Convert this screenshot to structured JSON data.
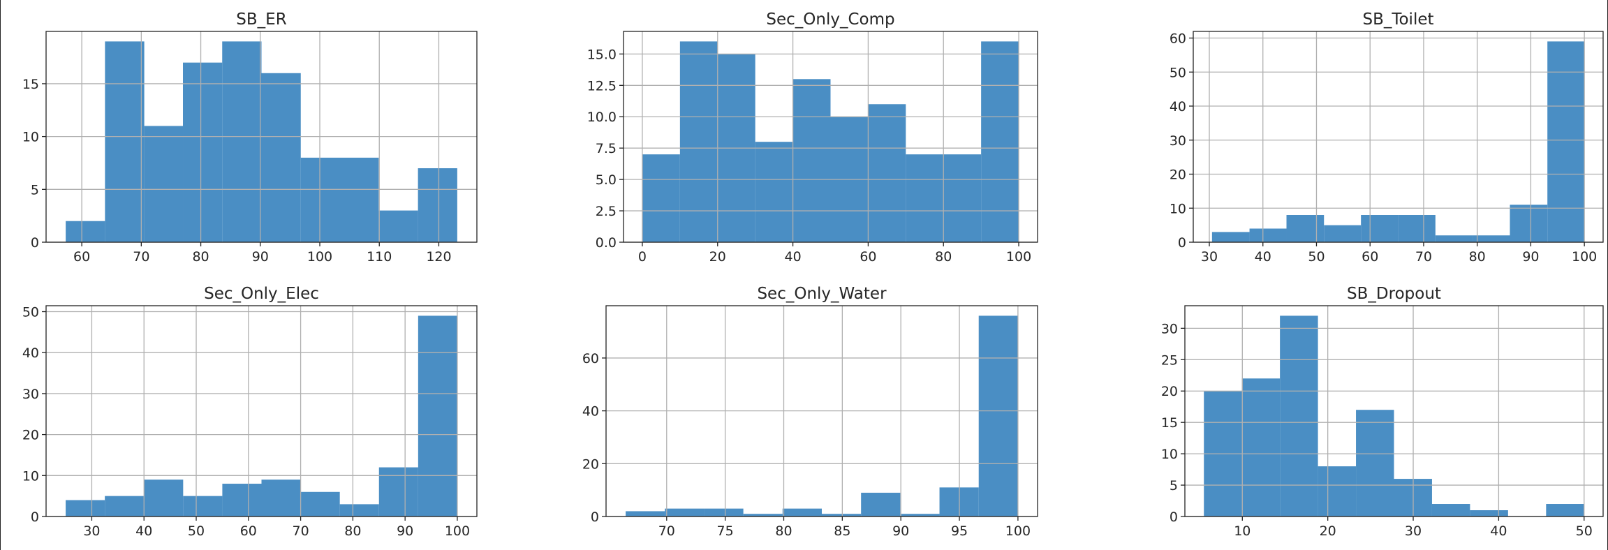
{
  "figure": {
    "bar_color": "#4a8ec4",
    "grid_color": "#b0b0b0"
  },
  "chart_data": [
    {
      "type": "bar",
      "title": "SB_ER",
      "bin_edges": [
        57.3,
        63.9,
        70.5,
        77.0,
        83.6,
        90.2,
        96.8,
        103.4,
        109.9,
        116.5,
        123.1
      ],
      "values": [
        2,
        19,
        11,
        17,
        19,
        16,
        8,
        8,
        3,
        7
      ],
      "xlim": [
        54.0,
        126.4
      ],
      "ylim": [
        0,
        19.95
      ],
      "xticks": [
        60,
        70,
        80,
        90,
        100,
        110,
        120
      ],
      "yticks": [
        0,
        5,
        10,
        15
      ],
      "ytick_labels": [
        "0",
        "5",
        "10",
        "15"
      ],
      "grid": true
    },
    {
      "type": "bar",
      "title": "Sec_Only_Comp",
      "bin_edges": [
        0,
        10,
        20,
        30,
        40,
        50,
        60,
        70,
        80,
        90,
        100
      ],
      "values": [
        7,
        16,
        15,
        8,
        13,
        10,
        11,
        7,
        7,
        16
      ],
      "xlim": [
        -5,
        105
      ],
      "ylim": [
        0,
        16.8
      ],
      "xticks": [
        0,
        20,
        40,
        60,
        80,
        100
      ],
      "yticks": [
        0,
        2.5,
        5,
        7.5,
        10,
        12.5,
        15
      ],
      "ytick_labels": [
        "0.0",
        "2.5",
        "5.0",
        "7.5",
        "10.0",
        "12.5",
        "15.0"
      ],
      "grid": true
    },
    {
      "type": "bar",
      "title": "SB_Toilet",
      "bin_edges": [
        30.5,
        37.5,
        44.4,
        51.4,
        58.3,
        65.3,
        72.2,
        79.2,
        86.1,
        93.1,
        100
      ],
      "values": [
        3,
        4,
        8,
        5,
        8,
        8,
        2,
        2,
        11,
        59
      ],
      "xlim": [
        27.0,
        103.5
      ],
      "ylim": [
        0,
        61.95
      ],
      "xticks": [
        30,
        40,
        50,
        60,
        70,
        80,
        90,
        100
      ],
      "yticks": [
        0,
        10,
        20,
        30,
        40,
        50,
        60
      ],
      "ytick_labels": [
        "0",
        "10",
        "20",
        "30",
        "40",
        "50",
        "60"
      ],
      "grid": true
    },
    {
      "type": "bar",
      "title": "Sec_Only_Elec",
      "bin_edges": [
        25,
        32.5,
        40,
        47.5,
        55,
        62.5,
        70,
        77.5,
        85,
        92.5,
        100
      ],
      "values": [
        4,
        5,
        9,
        5,
        8,
        9,
        6,
        3,
        12,
        49
      ],
      "xlim": [
        21.25,
        103.75
      ],
      "ylim": [
        0,
        51.45
      ],
      "xticks": [
        30,
        40,
        50,
        60,
        70,
        80,
        90,
        100
      ],
      "yticks": [
        0,
        10,
        20,
        30,
        40,
        50
      ],
      "ytick_labels": [
        "0",
        "10",
        "20",
        "30",
        "40",
        "50"
      ],
      "grid": true
    },
    {
      "type": "bar",
      "title": "Sec_Only_Water",
      "bin_edges": [
        66.5,
        69.85,
        73.2,
        76.55,
        79.9,
        83.25,
        86.6,
        89.95,
        93.3,
        96.65,
        100
      ],
      "values": [
        2,
        3,
        3,
        1,
        3,
        1,
        9,
        1,
        11,
        76
      ],
      "xlim": [
        64.825,
        101.675
      ],
      "ylim": [
        0,
        79.8
      ],
      "xticks": [
        70,
        75,
        80,
        85,
        90,
        95,
        100
      ],
      "yticks": [
        0,
        20,
        40,
        60
      ],
      "ytick_labels": [
        "0",
        "20",
        "40",
        "60"
      ],
      "grid": true
    },
    {
      "type": "bar",
      "title": "SB_Dropout",
      "bin_edges": [
        5.5,
        9.95,
        14.4,
        18.85,
        23.3,
        27.75,
        32.2,
        36.65,
        41.1,
        45.55,
        50
      ],
      "values": [
        20,
        22,
        32,
        8,
        17,
        6,
        2,
        1,
        0,
        2
      ],
      "xlim": [
        3.275,
        52.225
      ],
      "ylim": [
        0,
        33.6
      ],
      "xticks": [
        10,
        20,
        30,
        40,
        50
      ],
      "yticks": [
        0,
        5,
        10,
        15,
        20,
        25,
        30
      ],
      "ytick_labels": [
        "0",
        "5",
        "10",
        "15",
        "20",
        "25",
        "30"
      ],
      "grid": true
    }
  ]
}
